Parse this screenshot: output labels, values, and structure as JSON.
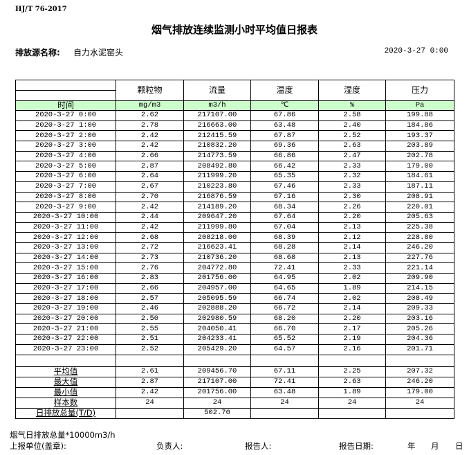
{
  "header": {
    "standard": "HJ/T  76-2017",
    "title": "烟气排放连续监测小时平均值日报表",
    "source_label": "排放源名称:",
    "source_value": "自力水泥窑头",
    "report_datetime": "2020-3-27 0:00"
  },
  "table": {
    "columns": [
      "颗粒物",
      "流量",
      "温度",
      "湿度",
      "压力"
    ],
    "time_label": "时间",
    "units": [
      "mg/m3",
      "m3/h",
      "℃",
      "%",
      "Pa"
    ],
    "rows": [
      [
        "2020-3-27 0:00",
        "2.62",
        "217107.00",
        "67.86",
        "2.58",
        "199.88"
      ],
      [
        "2020-3-27 1:00",
        "2.78",
        "216663.00",
        "63.48",
        "2.40",
        "184.86"
      ],
      [
        "2020-3-27 2:00",
        "2.42",
        "212415.59",
        "67.87",
        "2.52",
        "193.37"
      ],
      [
        "2020-3-27 3:00",
        "2.42",
        "210832.20",
        "69.36",
        "2.63",
        "203.89"
      ],
      [
        "2020-3-27 4:00",
        "2.66",
        "214773.59",
        "66.86",
        "2.47",
        "202.78"
      ],
      [
        "2020-3-27 5:00",
        "2.87",
        "208492.80",
        "66.42",
        "2.33",
        "179.00"
      ],
      [
        "2020-3-27 6:00",
        "2.64",
        "211999.20",
        "65.35",
        "2.32",
        "184.61"
      ],
      [
        "2020-3-27 7:00",
        "2.67",
        "210223.80",
        "67.46",
        "2.33",
        "187.11"
      ],
      [
        "2020-3-27 8:00",
        "2.70",
        "216876.59",
        "67.16",
        "2.30",
        "208.91"
      ],
      [
        "2020-3-27 9:00",
        "2.42",
        "214189.20",
        "68.34",
        "2.26",
        "220.01"
      ],
      [
        "2020-3-27 10:00",
        "2.44",
        "209647.20",
        "67.64",
        "2.20",
        "205.63"
      ],
      [
        "2020-3-27 11:00",
        "2.42",
        "211999.80",
        "67.04",
        "2.13",
        "225.38"
      ],
      [
        "2020-3-27 12:00",
        "2.68",
        "208218.00",
        "68.39",
        "2.12",
        "228.80"
      ],
      [
        "2020-3-27 13:00",
        "2.72",
        "216623.41",
        "68.28",
        "2.14",
        "246.20"
      ],
      [
        "2020-3-27 14:00",
        "2.73",
        "210736.20",
        "68.68",
        "2.13",
        "227.76"
      ],
      [
        "2020-3-27 15:00",
        "2.76",
        "204772.80",
        "72.41",
        "2.33",
        "221.14"
      ],
      [
        "2020-3-27 16:00",
        "2.83",
        "201756.00",
        "64.95",
        "2.02",
        "209.90"
      ],
      [
        "2020-3-27 17:00",
        "2.66",
        "204957.00",
        "64.65",
        "1.89",
        "214.15"
      ],
      [
        "2020-3-27 18:00",
        "2.57",
        "205095.59",
        "66.74",
        "2.02",
        "208.49"
      ],
      [
        "2020-3-27 19:00",
        "2.46",
        "202888.20",
        "66.72",
        "2.14",
        "209.33"
      ],
      [
        "2020-3-27 20:00",
        "2.50",
        "202980.59",
        "68.20",
        "2.20",
        "203.16"
      ],
      [
        "2020-3-27 21:00",
        "2.55",
        "204050.41",
        "66.70",
        "2.17",
        "205.26"
      ],
      [
        "2020-3-27 22:00",
        "2.51",
        "204233.41",
        "65.52",
        "2.19",
        "204.36"
      ],
      [
        "2020-3-27 23:00",
        "2.52",
        "205429.20",
        "64.57",
        "2.16",
        "201.71"
      ]
    ],
    "stats": [
      [
        "平均值",
        "2.61",
        "209456.70",
        "67.11",
        "2.25",
        "207.32"
      ],
      [
        "最大值",
        "2.87",
        "217107.00",
        "72.41",
        "2.63",
        "246.20"
      ],
      [
        "最小值",
        "2.42",
        "201756.00",
        "63.48",
        "1.89",
        "179.00"
      ],
      [
        "样本数",
        "24",
        "24",
        "24",
        "24",
        "24"
      ],
      [
        "日排放总量(T/D)",
        "",
        "502.70",
        "",
        "",
        ""
      ]
    ]
  },
  "footer": {
    "note": "烟气日排放总量*10000m3/h",
    "unit_label": "上报单位(盖章):",
    "responsible_label": "负责人:",
    "reporter_label": "报告人:",
    "report_date_label": "报告日期:",
    "year": "年",
    "month": "月",
    "day": "日"
  }
}
